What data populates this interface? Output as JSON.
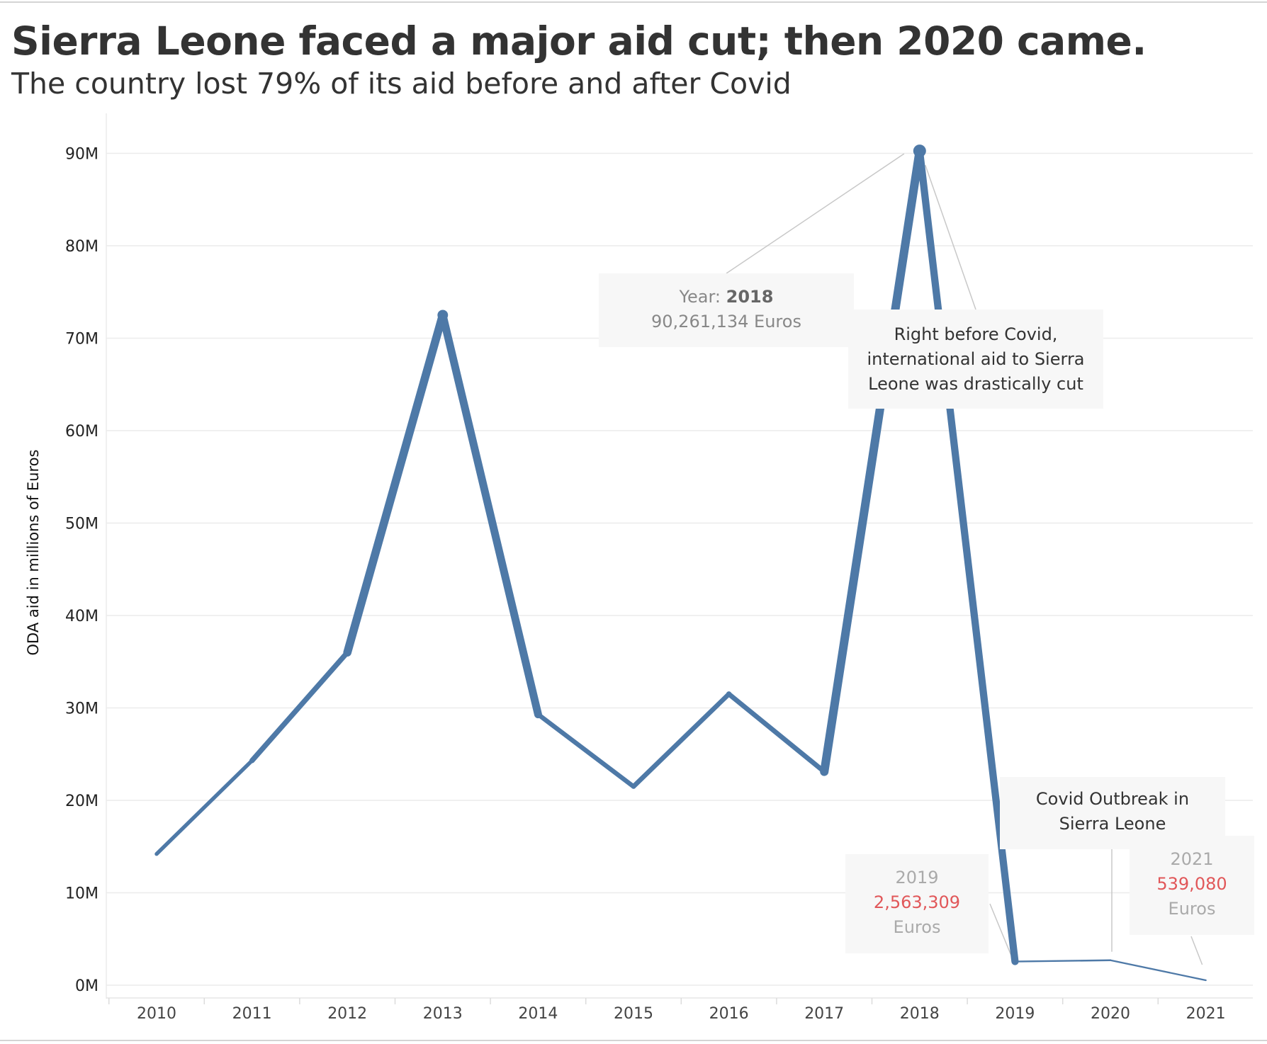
{
  "title": "Sierra Leone faced a major aid cut; then 2020 came.",
  "subtitle": "The country lost 79% of its aid before and after Covid",
  "colors": {
    "line": "#4e79a7",
    "highlight": "#e15759",
    "muted": "#aaaaaa",
    "text": "#333333"
  },
  "annotations": {
    "tooltip_2018": {
      "year_label": "Year:",
      "year": "2018",
      "value": "90,261,134 Euros"
    },
    "before_covid": {
      "lines": [
        "Right before Covid,",
        "international aid to Sierra",
        "Leone was drastically cut"
      ]
    },
    "covid_outbreak": {
      "lines": [
        "Covid Outbreak in",
        "Sierra Leone"
      ]
    },
    "label_2019": {
      "year": "2019",
      "value": "2,563,309",
      "unit": "Euros"
    },
    "label_2021": {
      "year": "2021",
      "value": "539,080",
      "unit": "Euros"
    }
  },
  "chart_data": {
    "type": "line",
    "ylabel": "ODA aid in millions of Euros",
    "ylim": [
      -1000000,
      95000000
    ],
    "yticks": [
      0,
      10000000,
      20000000,
      30000000,
      40000000,
      50000000,
      60000000,
      70000000,
      80000000,
      90000000
    ],
    "ytick_labels": [
      "0M",
      "10M",
      "20M",
      "30M",
      "40M",
      "50M",
      "60M",
      "70M",
      "80M",
      "90M"
    ],
    "grid": true,
    "series": [
      {
        "x": [
          "2010",
          "2011",
          "2012",
          "2013",
          "2014",
          "2015",
          "2016",
          "2017",
          "2018",
          "2019",
          "2020",
          "2021"
        ],
        "values": [
          14200000,
          24300000,
          36000000,
          72500000,
          29300000,
          21500000,
          31500000,
          23100000,
          90261134,
          2563309,
          2700000,
          539080
        ]
      }
    ]
  }
}
